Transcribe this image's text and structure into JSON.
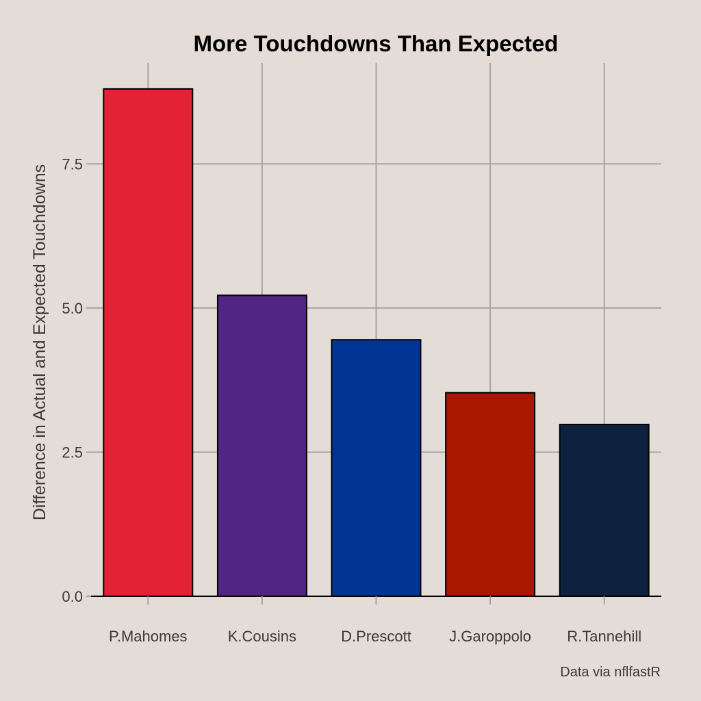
{
  "chart_data": {
    "type": "bar",
    "title": "More Touchdowns Than Expected",
    "xlabel": "",
    "ylabel": "Difference in Actual and Expected Touchdowns",
    "caption": "Data via nflfastR",
    "categories": [
      "P.Mahomes",
      "K.Cousins",
      "D.Prescott",
      "J.Garoppolo",
      "R.Tannehill"
    ],
    "values": [
      8.8,
      5.22,
      4.45,
      3.53,
      2.98
    ],
    "bar_colors": [
      "#e22337",
      "#512584",
      "#003594",
      "#aa1600",
      "#0e2240"
    ],
    "ylim": [
      0,
      9.25
    ],
    "yticks": [
      0,
      2.5,
      5,
      7.5
    ],
    "ytick_labels": [
      "0.0",
      "2.5",
      "5.0",
      "7.5"
    ],
    "grid": true,
    "legend": "none"
  }
}
